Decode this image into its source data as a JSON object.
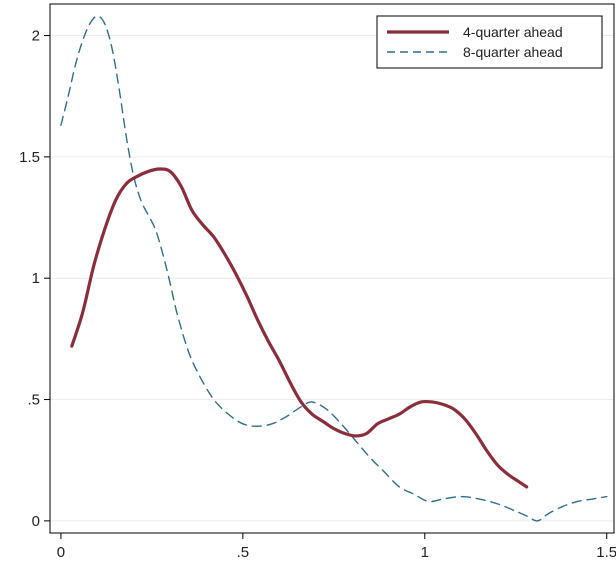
{
  "chart_data": {
    "type": "line",
    "title": "",
    "xlabel": "",
    "ylabel": "",
    "xlim": [
      -0.03,
      1.52
    ],
    "ylim": [
      -0.05,
      2.13
    ],
    "xticks": [
      {
        "value": 0,
        "label": "0"
      },
      {
        "value": 0.5,
        "label": ".5"
      },
      {
        "value": 1,
        "label": "1"
      },
      {
        "value": 1.5,
        "label": "1.5"
      }
    ],
    "yticks": [
      {
        "value": 0,
        "label": "0"
      },
      {
        "value": 0.5,
        "label": ".5"
      },
      {
        "value": 1,
        "label": "1"
      },
      {
        "value": 1.5,
        "label": "1.5"
      },
      {
        "value": 2,
        "label": "2"
      }
    ],
    "grid": "horizontal",
    "legend_position": "top-right",
    "series": [
      {
        "name": "4-quarter ahead",
        "color": "#8b2e3c",
        "style": "solid",
        "points": [
          [
            0.03,
            0.72
          ],
          [
            0.06,
            0.86
          ],
          [
            0.09,
            1.05
          ],
          [
            0.12,
            1.2
          ],
          [
            0.15,
            1.32
          ],
          [
            0.18,
            1.39
          ],
          [
            0.21,
            1.42
          ],
          [
            0.24,
            1.44
          ],
          [
            0.27,
            1.45
          ],
          [
            0.3,
            1.44
          ],
          [
            0.33,
            1.38
          ],
          [
            0.36,
            1.28
          ],
          [
            0.39,
            1.22
          ],
          [
            0.42,
            1.17
          ],
          [
            0.45,
            1.1
          ],
          [
            0.48,
            1.02
          ],
          [
            0.51,
            0.93
          ],
          [
            0.54,
            0.83
          ],
          [
            0.57,
            0.74
          ],
          [
            0.6,
            0.66
          ],
          [
            0.63,
            0.57
          ],
          [
            0.66,
            0.49
          ],
          [
            0.69,
            0.44
          ],
          [
            0.72,
            0.41
          ],
          [
            0.75,
            0.38
          ],
          [
            0.78,
            0.36
          ],
          [
            0.81,
            0.35
          ],
          [
            0.84,
            0.36
          ],
          [
            0.87,
            0.4
          ],
          [
            0.9,
            0.42
          ],
          [
            0.93,
            0.44
          ],
          [
            0.96,
            0.47
          ],
          [
            0.99,
            0.49
          ],
          [
            1.02,
            0.49
          ],
          [
            1.05,
            0.48
          ],
          [
            1.08,
            0.46
          ],
          [
            1.11,
            0.42
          ],
          [
            1.14,
            0.36
          ],
          [
            1.17,
            0.29
          ],
          [
            1.2,
            0.23
          ],
          [
            1.23,
            0.19
          ],
          [
            1.26,
            0.16
          ],
          [
            1.28,
            0.14
          ]
        ]
      },
      {
        "name": "8-quarter ahead",
        "color": "#2e6f8e",
        "style": "dashed",
        "points": [
          [
            0,
            1.63
          ],
          [
            0.02,
            1.75
          ],
          [
            0.04,
            1.88
          ],
          [
            0.06,
            1.98
          ],
          [
            0.08,
            2.05
          ],
          [
            0.1,
            2.08
          ],
          [
            0.12,
            2.05
          ],
          [
            0.14,
            1.95
          ],
          [
            0.16,
            1.78
          ],
          [
            0.18,
            1.58
          ],
          [
            0.2,
            1.42
          ],
          [
            0.22,
            1.32
          ],
          [
            0.24,
            1.26
          ],
          [
            0.26,
            1.2
          ],
          [
            0.28,
            1.1
          ],
          [
            0.3,
            0.98
          ],
          [
            0.32,
            0.85
          ],
          [
            0.35,
            0.7
          ],
          [
            0.38,
            0.6
          ],
          [
            0.42,
            0.5
          ],
          [
            0.46,
            0.44
          ],
          [
            0.5,
            0.4
          ],
          [
            0.54,
            0.39
          ],
          [
            0.58,
            0.4
          ],
          [
            0.62,
            0.43
          ],
          [
            0.66,
            0.47
          ],
          [
            0.69,
            0.49
          ],
          [
            0.73,
            0.46
          ],
          [
            0.77,
            0.4
          ],
          [
            0.81,
            0.33
          ],
          [
            0.85,
            0.26
          ],
          [
            0.89,
            0.2
          ],
          [
            0.93,
            0.14
          ],
          [
            0.97,
            0.11
          ],
          [
            1.01,
            0.08
          ],
          [
            1.05,
            0.09
          ],
          [
            1.1,
            0.1
          ],
          [
            1.15,
            0.09
          ],
          [
            1.2,
            0.07
          ],
          [
            1.25,
            0.04
          ],
          [
            1.28,
            0.02
          ],
          [
            1.31,
            0.0
          ],
          [
            1.34,
            0.03
          ],
          [
            1.38,
            0.06
          ],
          [
            1.42,
            0.08
          ],
          [
            1.46,
            0.09
          ],
          [
            1.5,
            0.1
          ]
        ]
      }
    ]
  }
}
